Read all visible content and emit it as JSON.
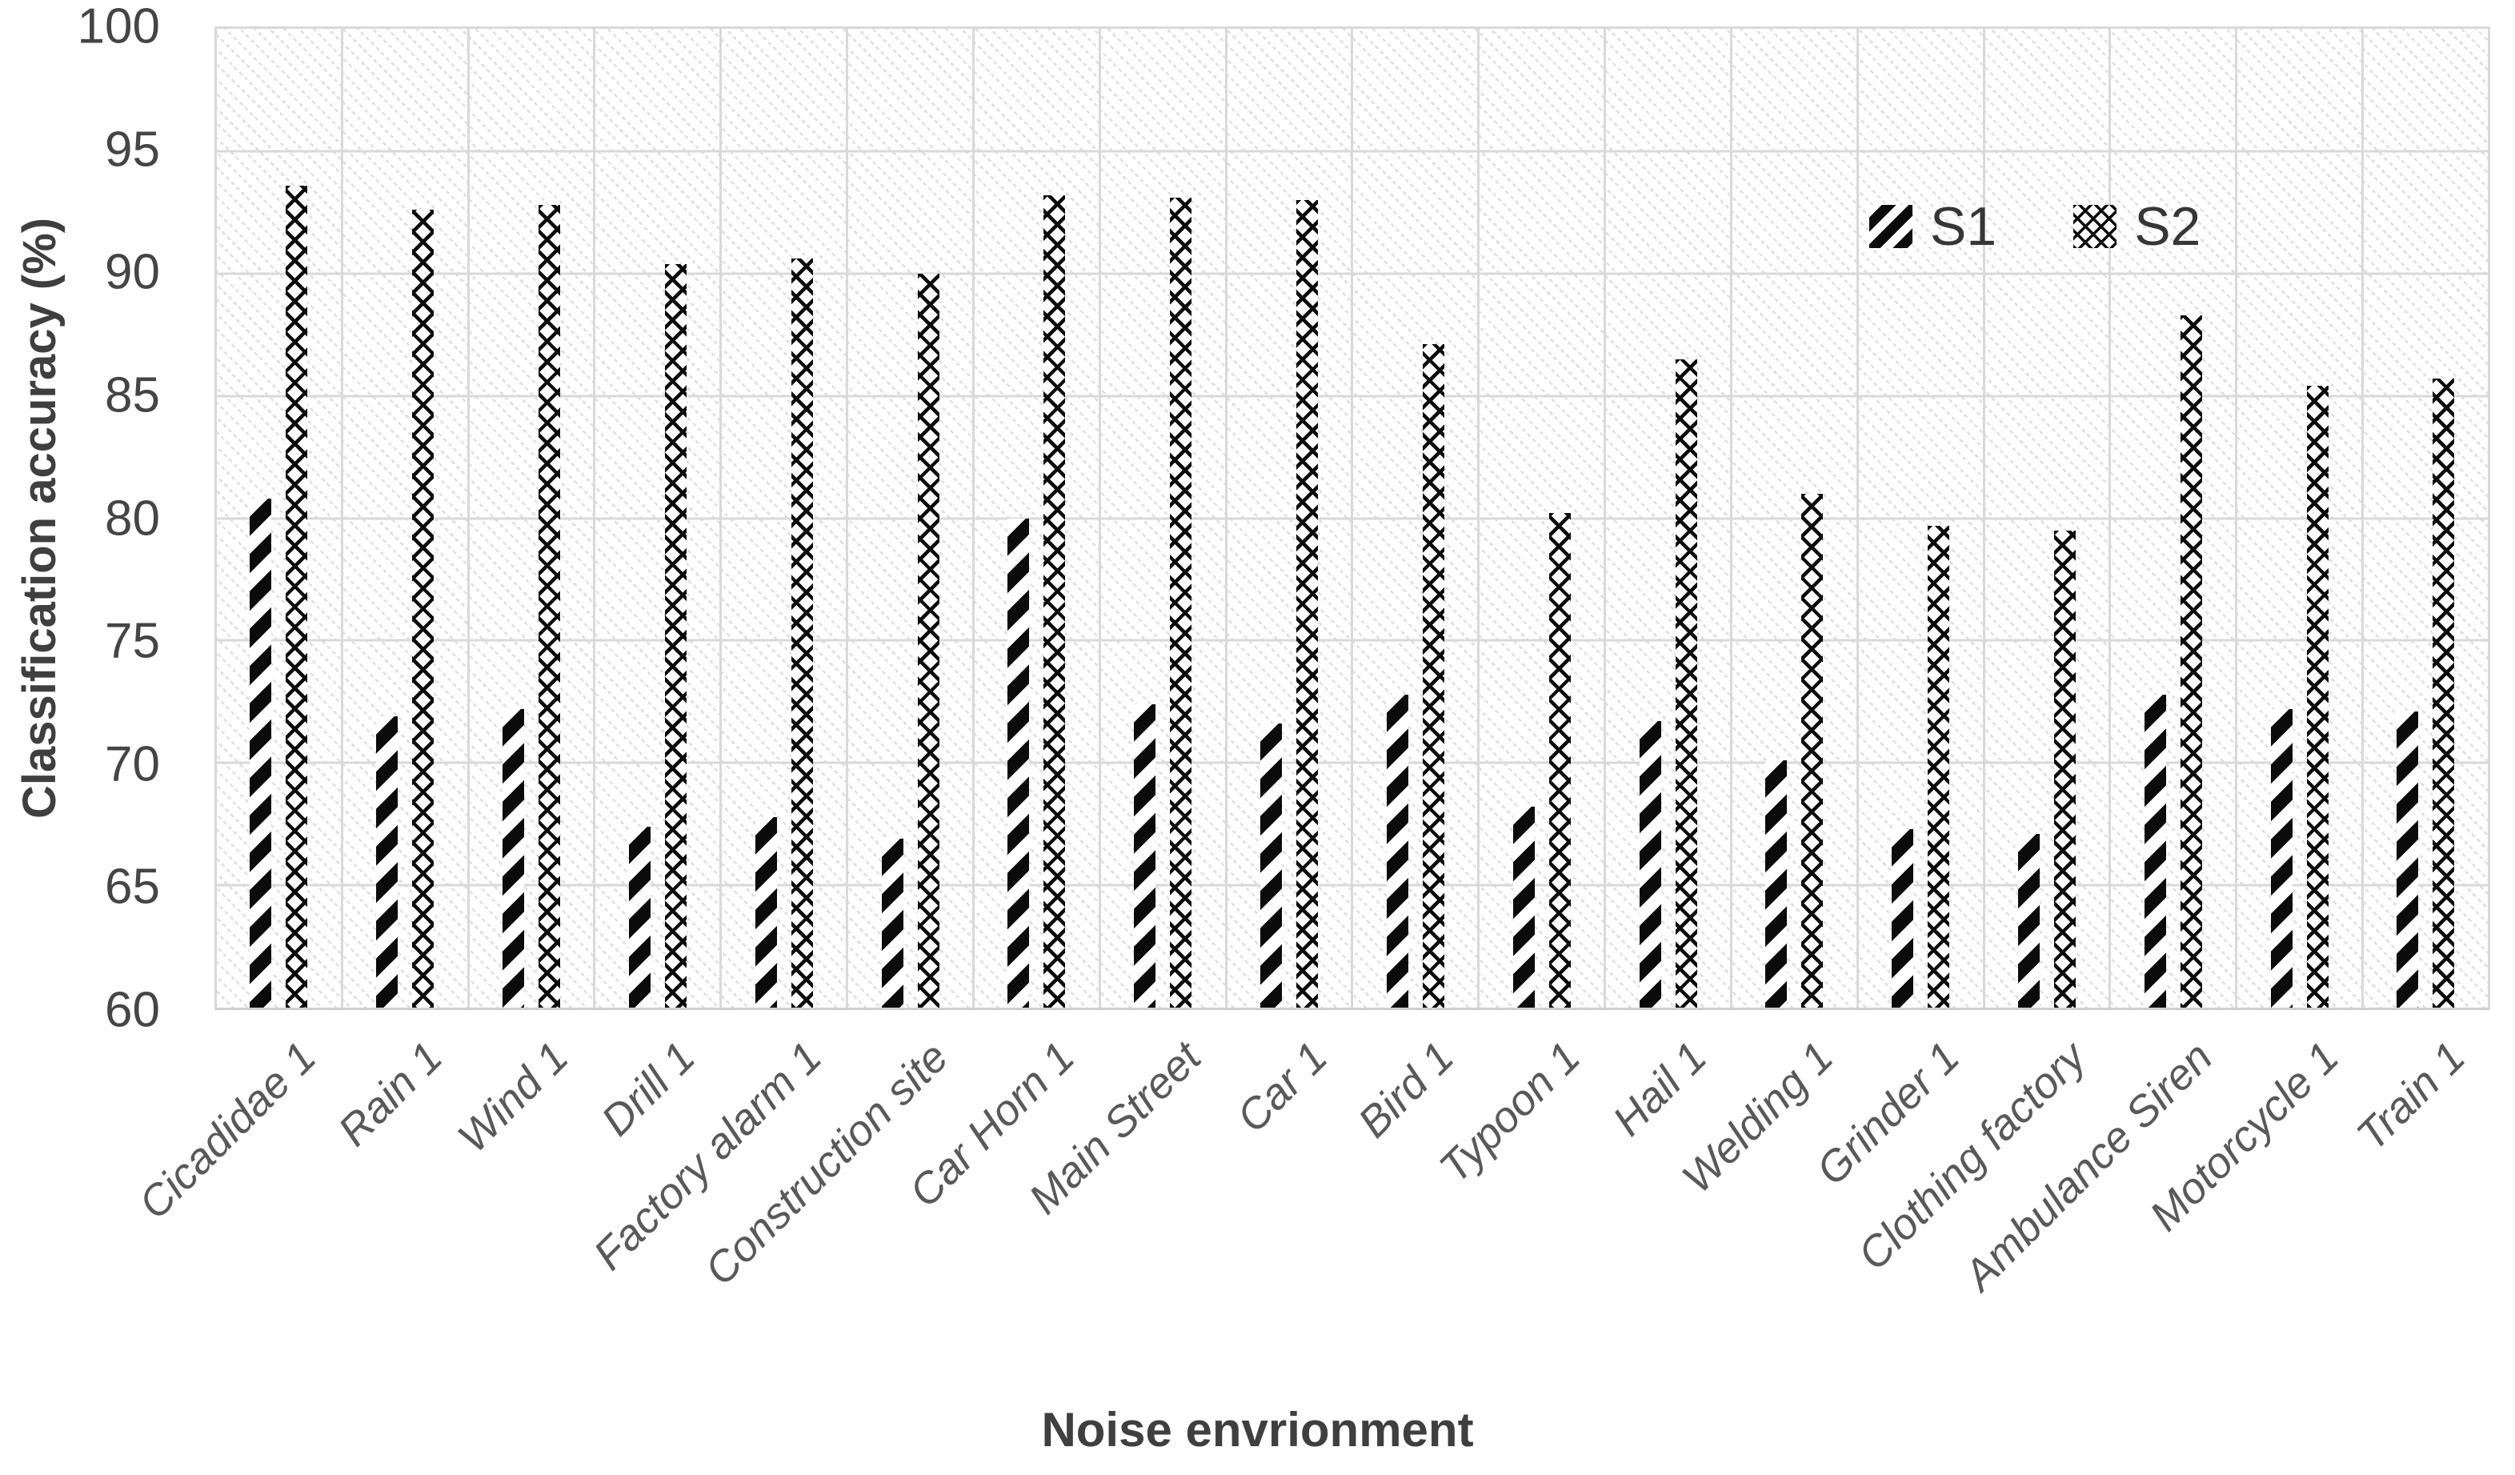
{
  "chart_data": {
    "type": "bar",
    "title": "",
    "xlabel": "Noise envrionment",
    "ylabel": "Classification accuracy (%)",
    "ylim": [
      60,
      100
    ],
    "ytick_step": 5,
    "ytick_labels": [
      "100",
      "95",
      "90",
      "85",
      "80",
      "75",
      "70",
      "65",
      "60"
    ],
    "grid": true,
    "plot_background": "light diagonal dotted hatch",
    "legend_position": "inside top-right",
    "categories": [
      "Cicadidae 1",
      "Rain 1",
      "Wind 1",
      "Drill 1",
      "Factory alarm 1",
      "Construction site",
      "Car Horn 1",
      "Main Street",
      "Car 1",
      "Bird 1",
      "Typoon 1",
      "Hail 1",
      "Welding 1",
      "Grinder 1",
      "Clothing factory",
      "Ambulance Siren",
      "Motorcycle 1",
      "Train 1"
    ],
    "series": [
      {
        "name": "S1",
        "pattern": "black diagonal stripes",
        "values": [
          80.8,
          71.9,
          72.2,
          67.4,
          67.8,
          66.9,
          80.0,
          72.4,
          71.6,
          72.8,
          68.2,
          71.7,
          70.1,
          67.3,
          67.1,
          72.8,
          72.2,
          72.1
        ]
      },
      {
        "name": "S2",
        "pattern": "black crosshatch dots",
        "values": [
          93.6,
          92.6,
          92.8,
          90.4,
          90.6,
          90.0,
          93.2,
          93.1,
          93.0,
          87.1,
          80.2,
          86.5,
          81.0,
          79.7,
          79.5,
          88.3,
          85.4,
          85.7
        ]
      }
    ]
  },
  "colors": {
    "axis_title_text": "#3f3f3f",
    "tick_text": "#454545",
    "category_text": "#595959",
    "gridline": "#d9d9d9",
    "bar_ink": "#0b0b0b",
    "plot_hatch": "#e0e0e0",
    "background": "#ffffff"
  }
}
